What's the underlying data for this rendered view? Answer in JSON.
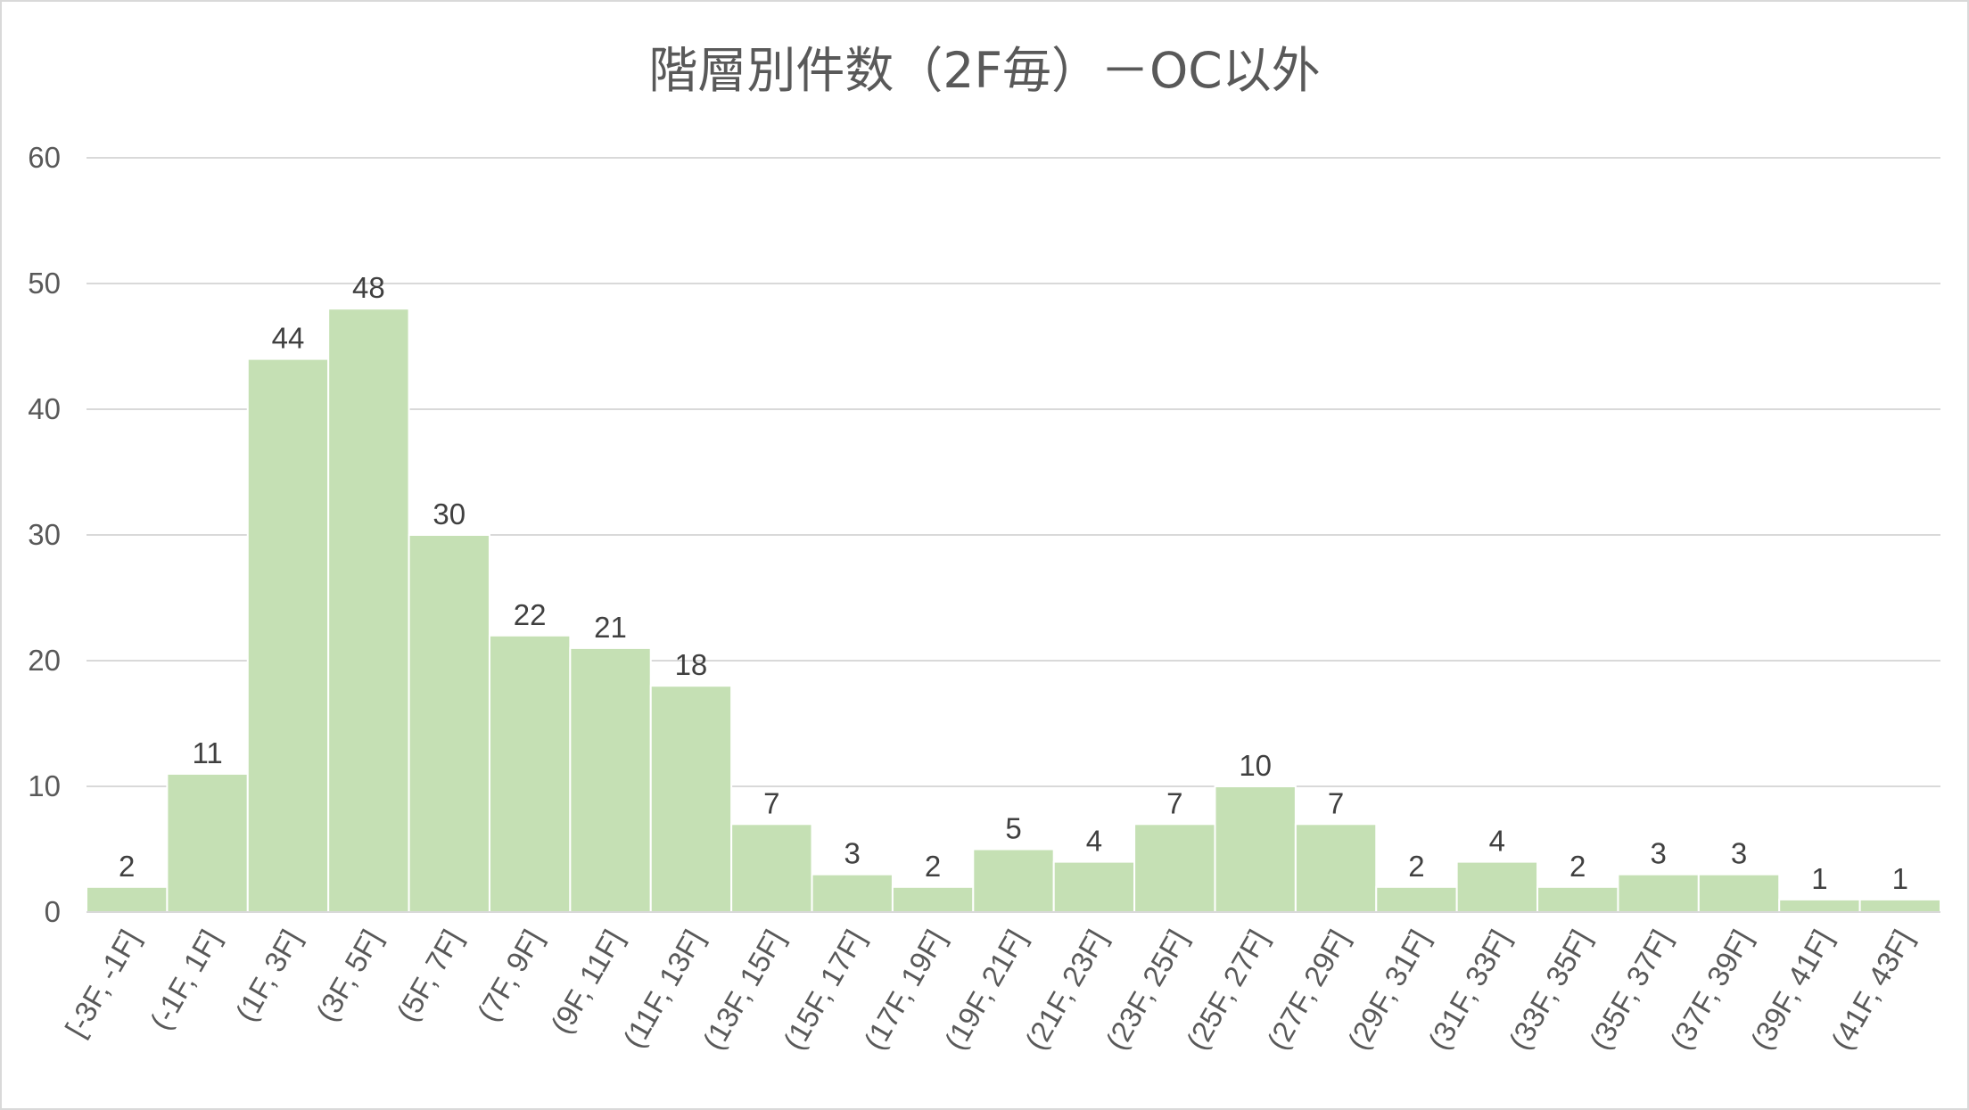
{
  "chart_data": {
    "type": "bar",
    "title": "階層別件数（2F毎）－OC以外",
    "xlabel": "",
    "ylabel": "",
    "ylim": [
      0,
      60
    ],
    "yticks": [
      0,
      10,
      20,
      30,
      40,
      50,
      60
    ],
    "grid": true,
    "legend": "none",
    "bar_color": "#c5e0b4",
    "bar_edge_color": "#ffffff",
    "categories": [
      "[-3F, -1F]",
      "(-1F, 1F]",
      "(1F, 3F]",
      "(3F, 5F]",
      "(5F, 7F]",
      "(7F, 9F]",
      "(9F, 11F]",
      "(11F, 13F]",
      "(13F, 15F]",
      "(15F, 17F]",
      "(17F, 19F]",
      "(19F, 21F]",
      "(21F, 23F]",
      "(23F, 25F]",
      "(25F, 27F]",
      "(27F, 29F]",
      "(29F, 31F]",
      "(31F, 33F]",
      "(33F, 35F]",
      "(35F, 37F]",
      "(37F, 39F]",
      "(39F, 41F]",
      "(41F, 43F]"
    ],
    "values": [
      2,
      11,
      44,
      48,
      30,
      22,
      21,
      18,
      7,
      3,
      2,
      5,
      4,
      7,
      10,
      7,
      2,
      4,
      2,
      3,
      3,
      1,
      1
    ]
  }
}
